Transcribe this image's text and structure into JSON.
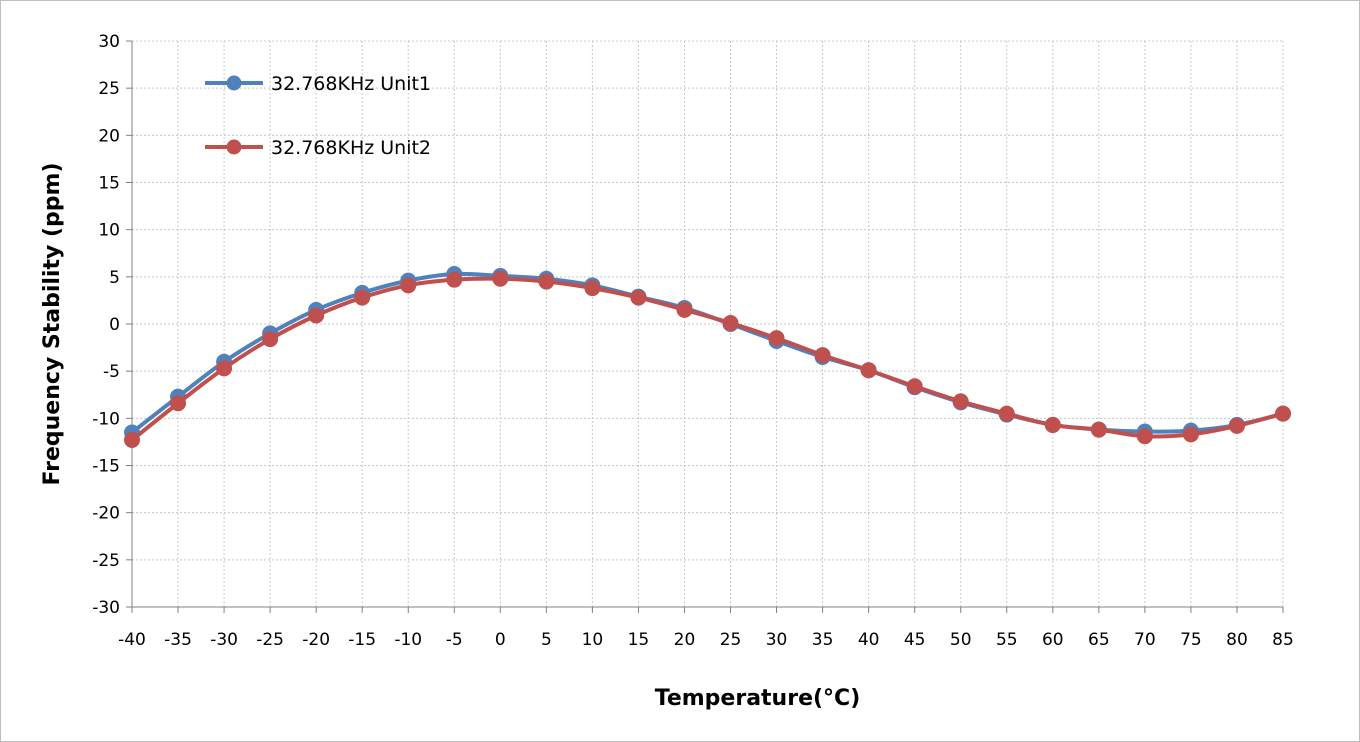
{
  "chart_data": {
    "type": "line",
    "xlabel": "Temperature(°C)",
    "ylabel": "Frequency Stability (ppm)",
    "xlim": [
      -40,
      85
    ],
    "ylim": [
      -30,
      30
    ],
    "x_ticks": [
      "-40",
      "-35",
      "-30",
      "-25",
      "-20",
      "-15",
      "-10",
      "-5",
      "0",
      "5",
      "10",
      "15",
      "20",
      "25",
      "30",
      "35",
      "40",
      "45",
      "50",
      "55",
      "60",
      "65",
      "70",
      "75",
      "80",
      "85"
    ],
    "y_ticks": [
      "30",
      "25",
      "20",
      "15",
      "10",
      "5",
      "0",
      "-5",
      "-10",
      "-15",
      "-20",
      "-25",
      "-30"
    ],
    "x": [
      -40,
      -35,
      -30,
      -25,
      -20,
      -15,
      -10,
      -5,
      0,
      5,
      10,
      15,
      20,
      25,
      30,
      35,
      40,
      45,
      50,
      55,
      60,
      65,
      70,
      75,
      80,
      85
    ],
    "grid": true,
    "legend_position": "top-left",
    "series": [
      {
        "name": "32.768KHz Unit1",
        "color": "#4f81bd",
        "values": [
          -11.5,
          -7.7,
          -4.0,
          -1.0,
          1.5,
          3.3,
          4.6,
          5.3,
          5.1,
          4.8,
          4.1,
          2.9,
          1.7,
          0.0,
          -1.8,
          -3.5,
          -4.9,
          -6.7,
          -8.3,
          -9.6,
          -10.7,
          -11.2,
          -11.4,
          -11.3,
          -10.7,
          -9.5
        ]
      },
      {
        "name": "32.768KHz Unit2",
        "color": "#c0504d",
        "values": [
          -12.3,
          -8.4,
          -4.7,
          -1.6,
          0.9,
          2.8,
          4.1,
          4.7,
          4.8,
          4.5,
          3.8,
          2.8,
          1.5,
          0.1,
          -1.5,
          -3.3,
          -4.9,
          -6.6,
          -8.2,
          -9.5,
          -10.7,
          -11.2,
          -11.9,
          -11.7,
          -10.8,
          -9.5
        ]
      }
    ]
  }
}
